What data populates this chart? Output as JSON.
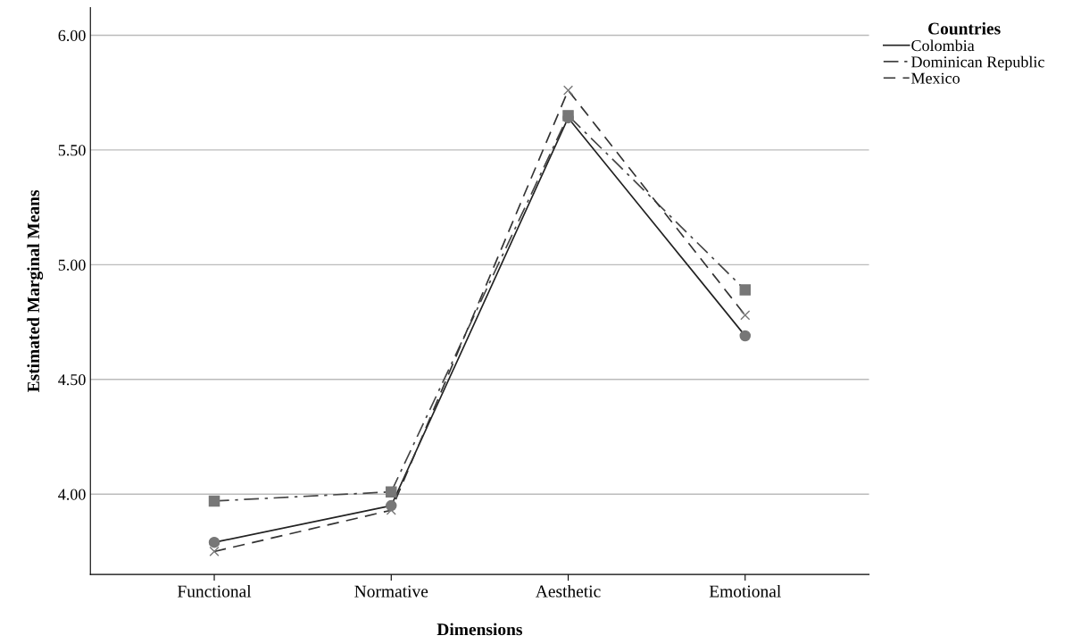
{
  "chart_data": {
    "type": "line",
    "xlabel": "Dimensions",
    "ylabel": "Estimated Marginal Means",
    "legend_title": "Countries",
    "legend": "top right",
    "grid": "y",
    "categories": [
      "Functional",
      "Normative",
      "Aesthetic",
      "Emotional"
    ],
    "ylim": [
      3.65,
      6.12
    ],
    "yticks": [
      {
        "value": 4,
        "label": "4.00"
      },
      {
        "value": 4.5,
        "label": "4.50"
      },
      {
        "value": 5,
        "label": "5.00"
      },
      {
        "value": 5.5,
        "label": "5.50"
      },
      {
        "value": 6,
        "label": "6.00"
      }
    ],
    "series": [
      {
        "name": "Colombia",
        "color": "#222222",
        "marker": "circle",
        "line_style": "solid",
        "values": [
          3.79,
          3.95,
          5.64,
          4.69
        ]
      },
      {
        "name": "Dominican Republic",
        "color": "#444444",
        "marker": "square",
        "line_style": "dashdot",
        "values": [
          3.97,
          4.01,
          5.65,
          4.89
        ]
      },
      {
        "name": "Mexico",
        "color": "#333333",
        "marker": "cross",
        "line_style": "dashed",
        "values": [
          3.75,
          3.93,
          5.76,
          4.78
        ]
      }
    ]
  }
}
